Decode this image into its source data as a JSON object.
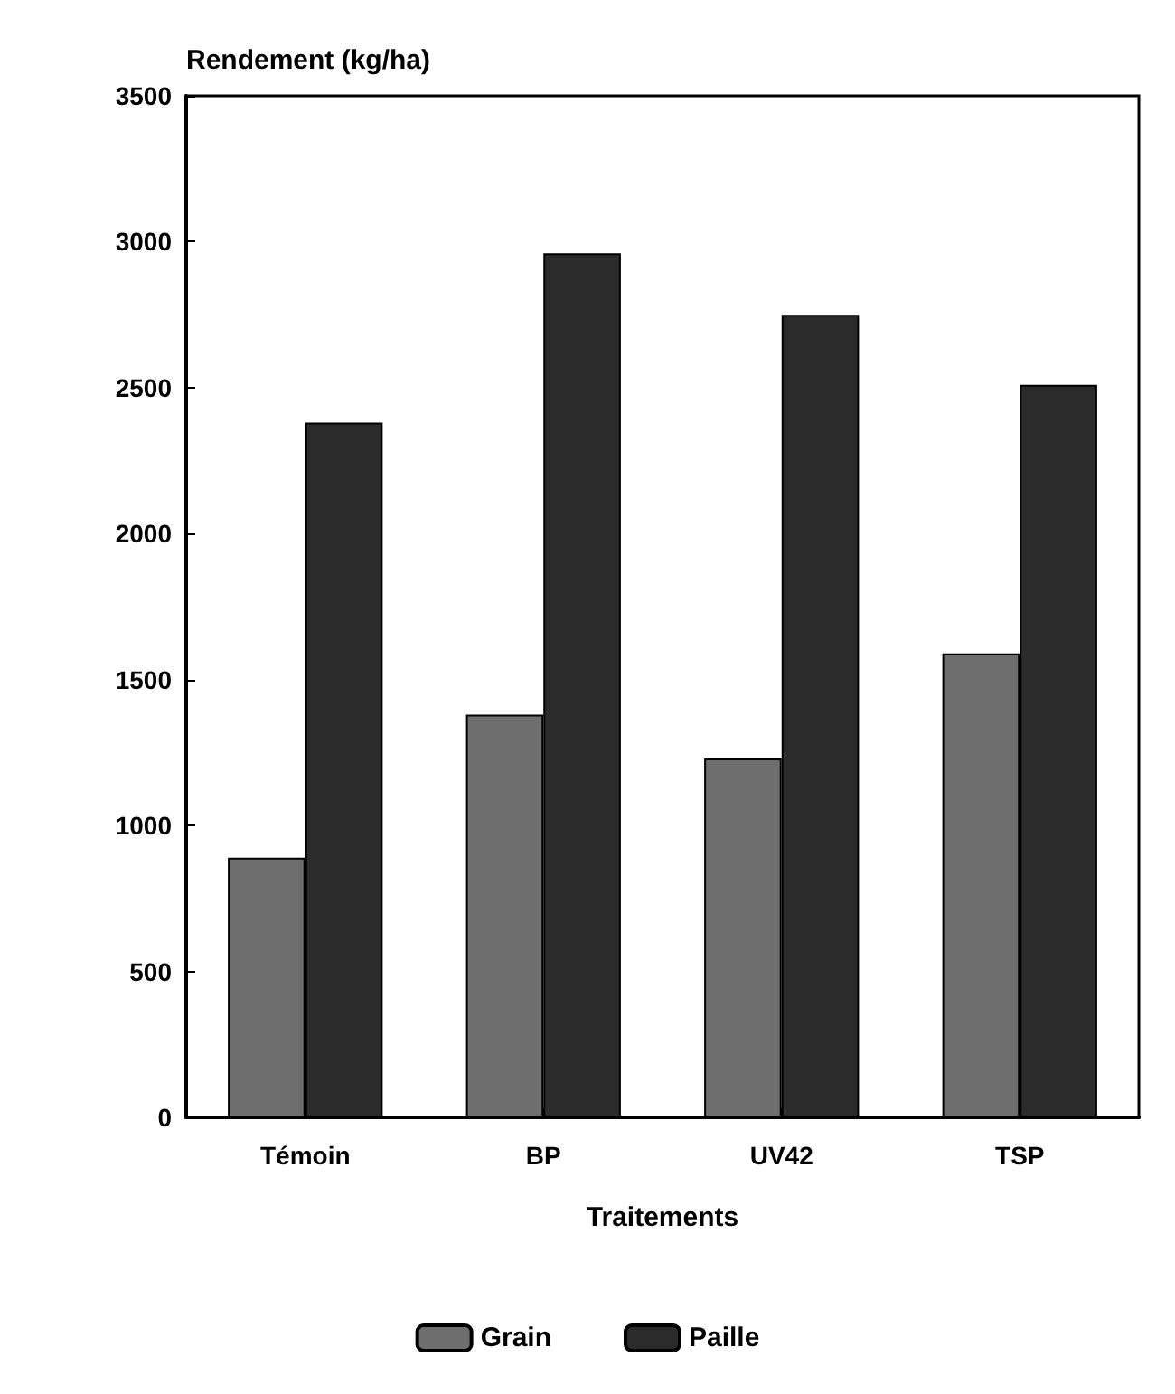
{
  "chart_data": {
    "type": "bar",
    "ylabel": "Rendement (kg/ha)",
    "xlabel": "Traitements",
    "categories": [
      "Témoin",
      "BP",
      "UV42",
      "TSP"
    ],
    "series": [
      {
        "name": "Grain",
        "color": "#6e6e6e",
        "values": [
          890,
          1380,
          1230,
          1590
        ]
      },
      {
        "name": "Paille",
        "color": "#2b2b2b",
        "values": [
          2380,
          2960,
          2750,
          2510
        ]
      }
    ],
    "ylim": [
      0,
      3500
    ],
    "yticks": [
      0,
      500,
      1000,
      1500,
      2000,
      2500,
      3000,
      3500
    ],
    "grid": false,
    "legend": "bottom"
  }
}
